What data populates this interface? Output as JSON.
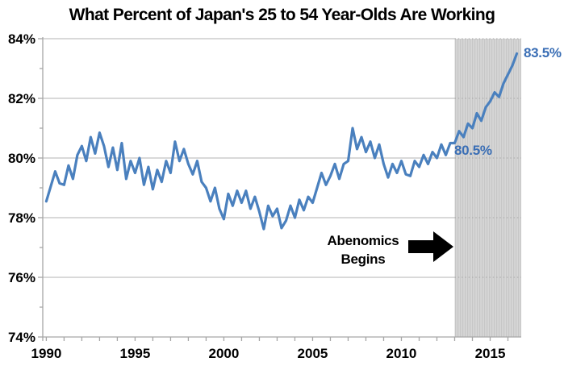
{
  "title": "What Percent of Japan's 25 to 54 Year-Olds Are Working",
  "annotations": {
    "abenomics_line1": "Abenomics",
    "abenomics_line2": "Begins",
    "start_label": "80.5%",
    "end_label": "83.5%"
  },
  "colors": {
    "line": "#4a80be",
    "label_blue": "#3a6eb5",
    "gridline": "#c2c2c2",
    "grid_dotted": "#a5a5a5",
    "axis": "#a6a6a6",
    "shade_light": "#d6d6d6",
    "shade_dark": "#c7c7c7",
    "annotation_black": "#000000"
  },
  "chart_data": {
    "type": "line",
    "title": "What Percent of Japan's 25 to 54 Year-Olds Are Working",
    "xlabel": "",
    "ylabel": "",
    "xlim": [
      1989.8,
      2016.75
    ],
    "ylim": [
      74,
      84
    ],
    "grid": true,
    "legend": false,
    "x_ticks_major": [
      1990,
      1995,
      2000,
      2005,
      2010,
      2015
    ],
    "x_tick_labels": [
      "1990",
      "1995",
      "2000",
      "2005",
      "2010",
      "2015"
    ],
    "x_ticks_minor_step": 1,
    "y_ticks_major": [
      74,
      76,
      78,
      80,
      82,
      84
    ],
    "y_tick_labels": [
      "74%",
      "76%",
      "78%",
      "80%",
      "82%",
      "84%"
    ],
    "y_ticks_minor": [
      75,
      77,
      79,
      81,
      83
    ],
    "shaded_region": {
      "start": 2013,
      "end": 2016.75,
      "label": "Abenomics Begins"
    },
    "point_labels": [
      {
        "x": 2013,
        "y": 80.5,
        "text": "80.5%"
      },
      {
        "x": 2016.5,
        "y": 83.5,
        "text": "83.5%"
      }
    ],
    "series": [
      {
        "name": "Percent of Japan's 25 to 54 year-olds working",
        "x": [
          1990.0,
          1990.25,
          1990.5,
          1990.75,
          1991.0,
          1991.25,
          1991.5,
          1991.75,
          1992.0,
          1992.25,
          1992.5,
          1992.75,
          1993.0,
          1993.25,
          1993.5,
          1993.75,
          1994.0,
          1994.25,
          1994.5,
          1994.75,
          1995.0,
          1995.25,
          1995.5,
          1995.75,
          1996.0,
          1996.25,
          1996.5,
          1996.75,
          1997.0,
          1997.25,
          1997.5,
          1997.75,
          1998.0,
          1998.25,
          1998.5,
          1998.75,
          1999.0,
          1999.25,
          1999.5,
          1999.75,
          2000.0,
          2000.25,
          2000.5,
          2000.75,
          2001.0,
          2001.25,
          2001.5,
          2001.75,
          2002.0,
          2002.25,
          2002.5,
          2002.75,
          2003.0,
          2003.25,
          2003.5,
          2003.75,
          2004.0,
          2004.25,
          2004.5,
          2004.75,
          2005.0,
          2005.25,
          2005.5,
          2005.75,
          2006.0,
          2006.25,
          2006.5,
          2006.75,
          2007.0,
          2007.25,
          2007.5,
          2007.75,
          2008.0,
          2008.25,
          2008.5,
          2008.75,
          2009.0,
          2009.25,
          2009.5,
          2009.75,
          2010.0,
          2010.25,
          2010.5,
          2010.75,
          2011.0,
          2011.25,
          2011.5,
          2011.75,
          2012.0,
          2012.25,
          2012.5,
          2012.75,
          2013.0,
          2013.25,
          2013.5,
          2013.75,
          2014.0,
          2014.25,
          2014.5,
          2014.75,
          2015.0,
          2015.25,
          2015.5,
          2015.75,
          2016.0,
          2016.25,
          2016.5
        ],
        "y": [
          78.55,
          79.05,
          79.55,
          79.15,
          79.1,
          79.75,
          79.3,
          80.1,
          80.4,
          79.9,
          80.7,
          80.15,
          80.85,
          80.4,
          79.7,
          80.35,
          79.6,
          80.5,
          79.3,
          79.9,
          79.5,
          80.0,
          79.1,
          79.7,
          78.95,
          79.6,
          79.2,
          79.9,
          79.5,
          80.55,
          79.9,
          80.3,
          79.8,
          79.45,
          79.9,
          79.2,
          79.0,
          78.55,
          79.0,
          78.3,
          77.95,
          78.8,
          78.4,
          78.9,
          78.5,
          78.9,
          78.3,
          78.7,
          78.2,
          77.62,
          78.4,
          78.05,
          78.3,
          77.65,
          77.9,
          78.4,
          78.0,
          78.6,
          78.25,
          78.7,
          78.5,
          79.0,
          79.5,
          79.1,
          79.4,
          79.8,
          79.3,
          79.8,
          79.9,
          81.0,
          80.3,
          80.7,
          80.2,
          80.55,
          80.0,
          80.45,
          79.8,
          79.35,
          79.8,
          79.5,
          79.9,
          79.45,
          79.4,
          79.9,
          79.7,
          80.1,
          79.8,
          80.2,
          80.0,
          80.45,
          80.1,
          80.5,
          80.5,
          80.9,
          80.7,
          81.15,
          81.0,
          81.5,
          81.25,
          81.7,
          81.9,
          82.2,
          82.05,
          82.5,
          82.8,
          83.1,
          83.5
        ]
      }
    ]
  }
}
